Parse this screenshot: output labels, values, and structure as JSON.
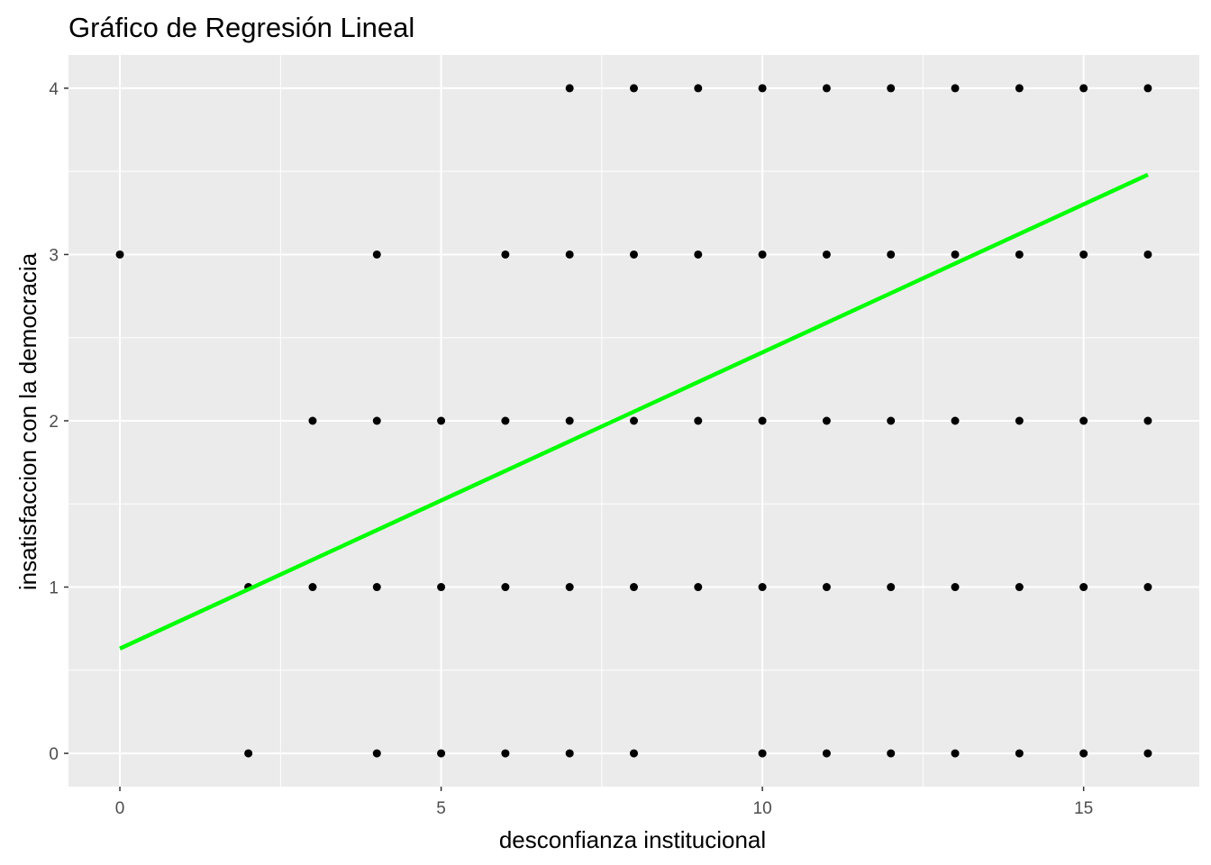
{
  "chart_data": {
    "type": "scatter",
    "title": "Gráfico de Regresión Lineal",
    "xlabel": "desconfianza institucional",
    "ylabel": "insatisfaccion con la democracia",
    "xlim": [
      -0.8,
      16.8
    ],
    "ylim": [
      -0.2,
      4.2
    ],
    "x_ticks": [
      0,
      5,
      10,
      15
    ],
    "y_ticks": [
      0,
      1,
      2,
      3,
      4
    ],
    "x_minor_ticks": [
      2.5,
      7.5,
      12.5
    ],
    "y_minor_ticks": [
      0.5,
      1.5,
      2.5,
      3.5
    ],
    "grid": true,
    "points": [
      [
        0,
        3
      ],
      [
        2,
        1
      ],
      [
        2,
        0
      ],
      [
        3,
        2
      ],
      [
        3,
        1
      ],
      [
        4,
        3
      ],
      [
        4,
        2
      ],
      [
        4,
        1
      ],
      [
        4,
        0
      ],
      [
        5,
        2
      ],
      [
        5,
        1
      ],
      [
        5,
        0
      ],
      [
        6,
        3
      ],
      [
        6,
        2
      ],
      [
        6,
        1
      ],
      [
        6,
        0
      ],
      [
        7,
        4
      ],
      [
        7,
        3
      ],
      [
        7,
        2
      ],
      [
        7,
        1
      ],
      [
        7,
        0
      ],
      [
        8,
        4
      ],
      [
        8,
        3
      ],
      [
        8,
        2
      ],
      [
        8,
        1
      ],
      [
        8,
        0
      ],
      [
        9,
        4
      ],
      [
        9,
        3
      ],
      [
        9,
        2
      ],
      [
        9,
        1
      ],
      [
        10,
        4
      ],
      [
        10,
        3
      ],
      [
        10,
        2
      ],
      [
        10,
        1
      ],
      [
        10,
        0
      ],
      [
        11,
        4
      ],
      [
        11,
        3
      ],
      [
        11,
        2
      ],
      [
        11,
        1
      ],
      [
        11,
        0
      ],
      [
        12,
        4
      ],
      [
        12,
        3
      ],
      [
        12,
        2
      ],
      [
        12,
        1
      ],
      [
        12,
        0
      ],
      [
        13,
        4
      ],
      [
        13,
        3
      ],
      [
        13,
        2
      ],
      [
        13,
        1
      ],
      [
        13,
        0
      ],
      [
        14,
        4
      ],
      [
        14,
        3
      ],
      [
        14,
        2
      ],
      [
        14,
        1
      ],
      [
        14,
        0
      ],
      [
        15,
        4
      ],
      [
        15,
        3
      ],
      [
        15,
        2
      ],
      [
        15,
        1
      ],
      [
        15,
        0
      ],
      [
        16,
        4
      ],
      [
        16,
        3
      ],
      [
        16,
        2
      ],
      [
        16,
        1
      ],
      [
        16,
        0
      ]
    ],
    "regression_line": {
      "x": [
        0,
        16
      ],
      "y": [
        0.63,
        3.48
      ]
    },
    "colors": {
      "panel_background": "#ebebeb",
      "grid": "#ffffff",
      "points": "#000000",
      "regression_line": "#00ff00",
      "tick_label": "#4d4d4d",
      "tick_mark": "#333333"
    }
  }
}
